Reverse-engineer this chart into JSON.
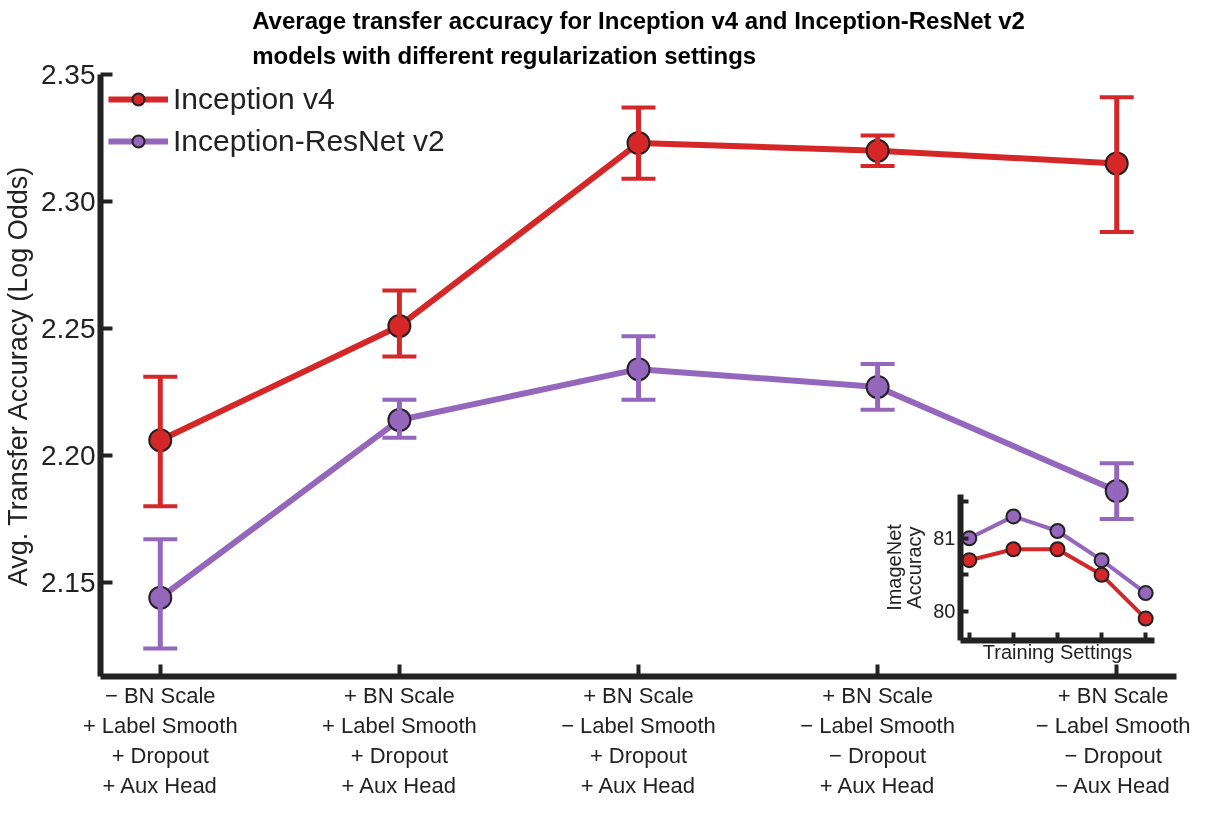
{
  "chart_data": [
    {
      "type": "line",
      "title": "Average transfer accuracy for Inception v4 and Inception-ResNet v2 models with different regularization settings",
      "ylabel": "Avg. Transfer Accuracy (Log Odds)",
      "categories": [
        "− BN Scale\n+ Label Smooth\n+ Dropout\n+ Aux Head",
        "+ BN Scale\n+ Label Smooth\n+ Dropout\n+ Aux Head",
        "+ BN Scale\n− Label Smooth\n+ Dropout\n+ Aux Head",
        "+ BN Scale\n− Label Smooth\n− Dropout\n+ Aux Head",
        "+ BN Scale\n− Label Smooth\n− Dropout\n− Aux Head"
      ],
      "series": [
        {
          "name": "Inception v4",
          "color": "#d62728",
          "values": [
            2.206,
            2.251,
            2.323,
            2.32,
            2.315
          ],
          "errors": [
            [
              2.18,
              2.231
            ],
            [
              2.239,
              2.265
            ],
            [
              2.309,
              2.337
            ],
            [
              2.314,
              2.326
            ],
            [
              2.288,
              2.341
            ]
          ]
        },
        {
          "name": "Inception-ResNet v2",
          "color": "#9467bd",
          "values": [
            2.144,
            2.214,
            2.234,
            2.227,
            2.186
          ],
          "errors": [
            [
              2.124,
              2.167
            ],
            [
              2.207,
              2.222
            ],
            [
              2.222,
              2.247
            ],
            [
              2.218,
              2.236
            ],
            [
              2.175,
              2.197
            ]
          ]
        }
      ],
      "ylim": [
        2.113,
        2.35
      ],
      "yticks": [
        2.15,
        {
          "value": 2.2,
          "label": "2.20"
        },
        2.25,
        {
          "value": 2.3,
          "label": "2.30"
        },
        2.35
      ],
      "grid": false,
      "legend": "top left",
      "marker": "circle",
      "line_style": "solid"
    },
    {
      "type": "line",
      "xlabel": "Training Settings",
      "ylabel": "ImageNet Accuracy",
      "categories": [
        null,
        null,
        null,
        null,
        null
      ],
      "series": [
        {
          "color": "#9467bd",
          "values": [
            81.0,
            81.3,
            81.1,
            80.7,
            80.25
          ]
        },
        {
          "color": "#d62728",
          "values": [
            80.7,
            80.85,
            80.85,
            80.5,
            79.9
          ]
        }
      ],
      "ylim": [
        79.6,
        81.6
      ],
      "yticks": [
        80,
        {
          "value": 80.5,
          "label": null
        },
        81,
        {
          "value": 81.5,
          "label": null
        }
      ],
      "grid": false,
      "legend": false,
      "marker": "circle",
      "line_style": "solid"
    }
  ]
}
